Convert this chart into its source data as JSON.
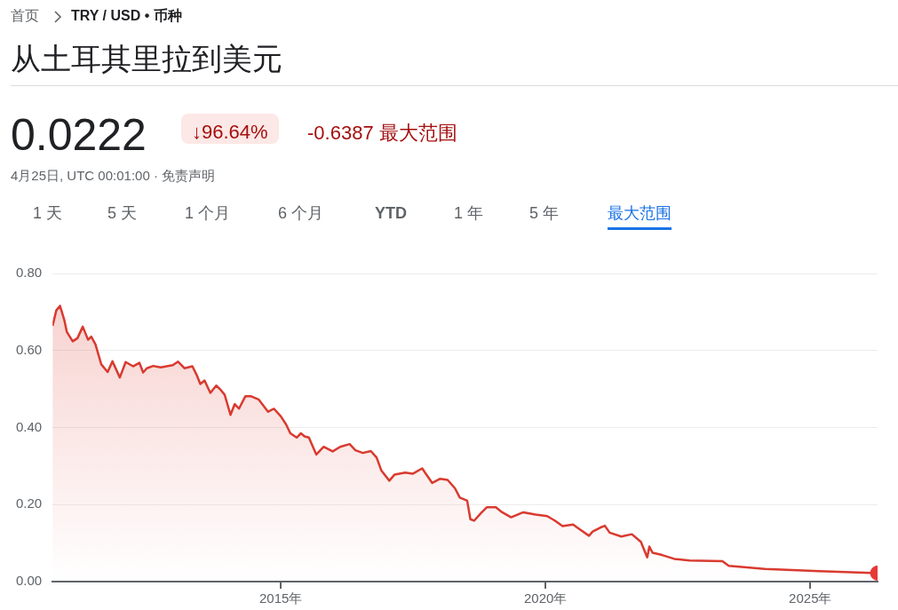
{
  "chart_data": {
    "type": "area",
    "title": "从土耳其里拉到美元",
    "annotations": [
      "首页",
      "TRY / USD • 币种",
      "0.0222",
      "↓96.64%",
      "-0.6387 最大范围",
      "4月25日, UTC 00:01:00 · 免责声明",
      "1 天",
      "5 天",
      "1 个月",
      "6 个月",
      "YTD",
      "1 年",
      "5 年",
      "最大范围"
    ],
    "xlim": [
      2010.69,
      2026.27
    ],
    "xticks": [
      {
        "value": 2015,
        "label": "2015年"
      },
      {
        "value": 2020,
        "label": "2020年"
      },
      {
        "value": 2025,
        "label": "2025年"
      }
    ],
    "ylim": [
      0,
      0.8
    ],
    "yticks": [
      {
        "value": 0,
        "label": "0.00"
      },
      {
        "value": 0.2,
        "label": "0.20"
      },
      {
        "value": 0.4,
        "label": "0.40"
      },
      {
        "value": 0.6,
        "label": "0.60"
      },
      {
        "value": 0.8,
        "label": "0.80"
      }
    ],
    "grid": "y",
    "series": [
      {
        "type": "area",
        "color": "#d93a2f",
        "x": [
          2010.69,
          2010.76,
          2010.83,
          2010.91,
          2010.96,
          2011.07,
          2011.16,
          2011.26,
          2011.36,
          2011.42,
          2011.5,
          2011.61,
          2011.73,
          2011.82,
          2011.96,
          2012.07,
          2012.21,
          2012.33,
          2012.4,
          2012.47,
          2012.59,
          2012.73,
          2012.96,
          2013.06,
          2013.18,
          2013.33,
          2013.41,
          2013.48,
          2013.56,
          2013.67,
          2013.78,
          2013.87,
          2013.94,
          2014.05,
          2014.13,
          2014.21,
          2014.33,
          2014.44,
          2014.58,
          2014.76,
          2014.87,
          2015.0,
          2015.1,
          2015.18,
          2015.3,
          2015.38,
          2015.45,
          2015.53,
          2015.67,
          2015.81,
          2015.98,
          2016.12,
          2016.3,
          2016.41,
          2016.55,
          2016.7,
          2016.81,
          2016.9,
          2017.05,
          2017.15,
          2017.35,
          2017.49,
          2017.67,
          2017.75,
          2017.86,
          2018.01,
          2018.15,
          2018.29,
          2018.38,
          2018.52,
          2018.58,
          2018.65,
          2018.78,
          2018.89,
          2019.06,
          2019.18,
          2019.35,
          2019.58,
          2019.81,
          2020.03,
          2020.18,
          2020.32,
          2020.52,
          2020.63,
          2020.82,
          2020.89,
          2021.03,
          2021.12,
          2021.21,
          2021.43,
          2021.63,
          2021.8,
          2021.92,
          2021.96,
          2022.02,
          2022.2,
          2022.43,
          2022.72,
          2023.34,
          2023.46,
          2024.14,
          2025.17,
          2026.27
        ],
        "values": [
          0.664,
          0.704,
          0.716,
          0.68,
          0.648,
          0.624,
          0.632,
          0.662,
          0.628,
          0.636,
          0.616,
          0.564,
          0.544,
          0.572,
          0.53,
          0.57,
          0.559,
          0.568,
          0.543,
          0.554,
          0.56,
          0.556,
          0.562,
          0.571,
          0.554,
          0.559,
          0.537,
          0.513,
          0.522,
          0.49,
          0.509,
          0.497,
          0.485,
          0.433,
          0.461,
          0.449,
          0.481,
          0.481,
          0.473,
          0.441,
          0.449,
          0.429,
          0.408,
          0.385,
          0.374,
          0.385,
          0.377,
          0.374,
          0.33,
          0.35,
          0.338,
          0.35,
          0.357,
          0.341,
          0.334,
          0.339,
          0.322,
          0.288,
          0.262,
          0.278,
          0.283,
          0.28,
          0.294,
          0.278,
          0.256,
          0.267,
          0.264,
          0.242,
          0.218,
          0.21,
          0.162,
          0.158,
          0.178,
          0.193,
          0.193,
          0.18,
          0.167,
          0.18,
          0.174,
          0.17,
          0.158,
          0.144,
          0.148,
          0.137,
          0.119,
          0.13,
          0.14,
          0.145,
          0.127,
          0.117,
          0.123,
          0.103,
          0.063,
          0.091,
          0.075,
          0.069,
          0.059,
          0.055,
          0.053,
          0.041,
          0.033,
          0.027,
          0.022
        ]
      },
      {
        "type": "scatter",
        "color": "#e53935",
        "x": [
          2026.27
        ],
        "values": [
          0.022
        ]
      }
    ]
  }
}
